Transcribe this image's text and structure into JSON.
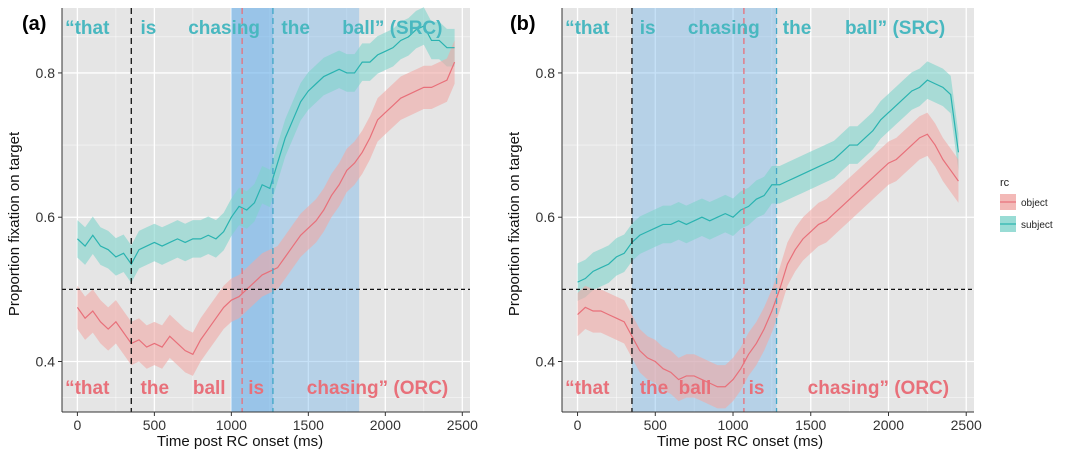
{
  "chart_data": [
    {
      "type": "line",
      "panel_label": "(a)",
      "xlabel": "Time post RC onset (ms)",
      "ylabel": "Proportion fixation on target",
      "xlim": [
        -100,
        2550
      ],
      "ylim": [
        0.33,
        0.89
      ],
      "x_ticks": [
        0,
        500,
        1000,
        1500,
        2000,
        2500
      ],
      "y_ticks": [
        0.4,
        0.6,
        0.8
      ],
      "y_tick_labels": [
        "0.4",
        "0.6",
        "0.8"
      ],
      "grid": true,
      "reference_line_y": 0.5,
      "vlines": [
        {
          "x": 350,
          "color": "#111111"
        },
        {
          "x": 1070,
          "color": "#e8707a"
        },
        {
          "x": 1270,
          "color": "#3fa7c7"
        }
      ],
      "shaded_regions": [
        {
          "x0": 1000,
          "x1": 1270,
          "color": "#6ab0ea"
        },
        {
          "x0": 1000,
          "x1": 1830,
          "color": "#6ab0ea"
        }
      ],
      "top_words": [
        {
          "text": "“that",
          "x": -80
        },
        {
          "text": "is",
          "x": 410
        },
        {
          "text": "chasing",
          "x": 720
        },
        {
          "text": "the",
          "x": 1325
        },
        {
          "text": "ball” (SRC)",
          "x": 1720
        }
      ],
      "bottom_words": [
        {
          "text": "“that",
          "x": -80
        },
        {
          "text": "the",
          "x": 410
        },
        {
          "text": "ball",
          "x": 750
        },
        {
          "text": "is",
          "x": 1110
        },
        {
          "text": "chasing” (ORC)",
          "x": 1490
        }
      ],
      "series": [
        {
          "name": "subject",
          "color": "#2ab3b0",
          "band_color": "#7fd3cb",
          "band_halfwidth": 0.026,
          "x": [
            0,
            50,
            100,
            150,
            200,
            250,
            300,
            350,
            400,
            450,
            500,
            550,
            600,
            650,
            700,
            750,
            800,
            850,
            900,
            950,
            1000,
            1050,
            1100,
            1150,
            1200,
            1250,
            1300,
            1350,
            1400,
            1450,
            1500,
            1550,
            1600,
            1650,
            1700,
            1750,
            1800,
            1850,
            1900,
            1950,
            2000,
            2050,
            2100,
            2150,
            2200,
            2250,
            2300,
            2350,
            2400,
            2450
          ],
          "values": [
            0.57,
            0.56,
            0.575,
            0.56,
            0.555,
            0.545,
            0.55,
            0.535,
            0.555,
            0.56,
            0.565,
            0.56,
            0.565,
            0.57,
            0.565,
            0.57,
            0.57,
            0.575,
            0.57,
            0.58,
            0.6,
            0.615,
            0.61,
            0.62,
            0.645,
            0.64,
            0.675,
            0.71,
            0.735,
            0.76,
            0.775,
            0.785,
            0.795,
            0.8,
            0.805,
            0.8,
            0.8,
            0.815,
            0.815,
            0.825,
            0.83,
            0.835,
            0.845,
            0.85,
            0.86,
            0.865,
            0.845,
            0.845,
            0.835,
            0.835
          ]
        },
        {
          "name": "object",
          "color": "#e8707a",
          "band_color": "#f0a8a5",
          "band_halfwidth": 0.03,
          "x": [
            0,
            50,
            100,
            150,
            200,
            250,
            300,
            350,
            400,
            450,
            500,
            550,
            600,
            650,
            700,
            750,
            800,
            850,
            900,
            950,
            1000,
            1050,
            1100,
            1150,
            1200,
            1250,
            1300,
            1350,
            1400,
            1450,
            1500,
            1550,
            1600,
            1650,
            1700,
            1750,
            1800,
            1850,
            1900,
            1950,
            2000,
            2050,
            2100,
            2150,
            2200,
            2250,
            2300,
            2350,
            2400,
            2450
          ],
          "values": [
            0.475,
            0.46,
            0.47,
            0.455,
            0.445,
            0.455,
            0.44,
            0.425,
            0.43,
            0.42,
            0.425,
            0.42,
            0.435,
            0.425,
            0.415,
            0.41,
            0.43,
            0.445,
            0.46,
            0.475,
            0.485,
            0.49,
            0.5,
            0.51,
            0.52,
            0.525,
            0.53,
            0.545,
            0.56,
            0.575,
            0.585,
            0.595,
            0.61,
            0.63,
            0.645,
            0.665,
            0.675,
            0.69,
            0.71,
            0.735,
            0.745,
            0.755,
            0.765,
            0.77,
            0.775,
            0.78,
            0.78,
            0.785,
            0.79,
            0.815
          ]
        }
      ]
    },
    {
      "type": "line",
      "panel_label": "(b)",
      "xlabel": "Time post RC onset (ms)",
      "ylabel": "Proportion fixation on target",
      "xlim": [
        -100,
        2550
      ],
      "ylim": [
        0.33,
        0.89
      ],
      "x_ticks": [
        0,
        500,
        1000,
        1500,
        2000,
        2500
      ],
      "y_ticks": [
        0.4,
        0.6,
        0.8
      ],
      "y_tick_labels": [
        "0.4",
        "0.6",
        "0.8"
      ],
      "grid": true,
      "reference_line_y": 0.5,
      "vlines": [
        {
          "x": 350,
          "color": "#111111"
        },
        {
          "x": 1070,
          "color": "#e8707a"
        },
        {
          "x": 1280,
          "color": "#3fa7c7"
        }
      ],
      "shaded_regions": [
        {
          "x0": 350,
          "x1": 1280,
          "color": "#6ab0ea"
        }
      ],
      "top_words": [
        {
          "text": "“that",
          "x": -80
        },
        {
          "text": "is",
          "x": 400
        },
        {
          "text": "chasing",
          "x": 710
        },
        {
          "text": "the",
          "x": 1320
        },
        {
          "text": "ball” (SRC)",
          "x": 1720
        }
      ],
      "bottom_words": [
        {
          "text": "“that",
          "x": -80
        },
        {
          "text": "the",
          "x": 400
        },
        {
          "text": "ball",
          "x": 650
        },
        {
          "text": "is",
          "x": 1100
        },
        {
          "text": "chasing” (ORC)",
          "x": 1480
        }
      ],
      "series": [
        {
          "name": "subject",
          "color": "#2ab3b0",
          "band_color": "#7fd3cb",
          "band_halfwidth": 0.026,
          "x": [
            0,
            50,
            100,
            150,
            200,
            250,
            300,
            350,
            400,
            450,
            500,
            550,
            600,
            650,
            700,
            750,
            800,
            850,
            900,
            950,
            1000,
            1050,
            1100,
            1150,
            1200,
            1250,
            1300,
            1350,
            1400,
            1450,
            1500,
            1550,
            1600,
            1650,
            1700,
            1750,
            1800,
            1850,
            1900,
            1950,
            2000,
            2050,
            2100,
            2150,
            2200,
            2250,
            2300,
            2350,
            2400,
            2450
          ],
          "values": [
            0.51,
            0.515,
            0.525,
            0.53,
            0.535,
            0.545,
            0.55,
            0.565,
            0.575,
            0.58,
            0.585,
            0.59,
            0.59,
            0.595,
            0.59,
            0.595,
            0.6,
            0.595,
            0.6,
            0.605,
            0.6,
            0.61,
            0.615,
            0.625,
            0.63,
            0.645,
            0.645,
            0.65,
            0.655,
            0.66,
            0.665,
            0.67,
            0.675,
            0.68,
            0.69,
            0.7,
            0.7,
            0.71,
            0.72,
            0.735,
            0.745,
            0.755,
            0.765,
            0.775,
            0.78,
            0.79,
            0.785,
            0.78,
            0.77,
            0.69
          ]
        },
        {
          "name": "object",
          "color": "#e8707a",
          "band_color": "#f0a8a5",
          "band_halfwidth": 0.03,
          "x": [
            0,
            50,
            100,
            150,
            200,
            250,
            300,
            350,
            400,
            450,
            500,
            550,
            600,
            650,
            700,
            750,
            800,
            850,
            900,
            950,
            1000,
            1050,
            1100,
            1150,
            1200,
            1250,
            1300,
            1350,
            1400,
            1450,
            1500,
            1550,
            1600,
            1650,
            1700,
            1750,
            1800,
            1850,
            1900,
            1950,
            2000,
            2050,
            2100,
            2150,
            2200,
            2250,
            2300,
            2350,
            2400,
            2450
          ],
          "values": [
            0.465,
            0.475,
            0.47,
            0.47,
            0.465,
            0.46,
            0.455,
            0.435,
            0.415,
            0.405,
            0.4,
            0.39,
            0.385,
            0.375,
            0.38,
            0.38,
            0.375,
            0.37,
            0.365,
            0.365,
            0.375,
            0.39,
            0.41,
            0.425,
            0.445,
            0.47,
            0.5,
            0.535,
            0.555,
            0.57,
            0.58,
            0.59,
            0.595,
            0.605,
            0.615,
            0.625,
            0.635,
            0.645,
            0.655,
            0.665,
            0.675,
            0.68,
            0.69,
            0.7,
            0.71,
            0.715,
            0.7,
            0.68,
            0.665,
            0.65
          ]
        }
      ]
    }
  ],
  "legend": {
    "title": "rc",
    "placement": "right",
    "entries": [
      {
        "label": "object",
        "color": "#e8707a",
        "band_color": "#f0a8a5"
      },
      {
        "label": "subject",
        "color": "#2ab3b0",
        "band_color": "#7fd3cb"
      }
    ]
  },
  "colors": {
    "panel_background": "#e5e5e5",
    "gridline": "#ffffff",
    "top_words": "#49b8c0",
    "bottom_words": "#e8707a",
    "reference_line": "#111111"
  }
}
